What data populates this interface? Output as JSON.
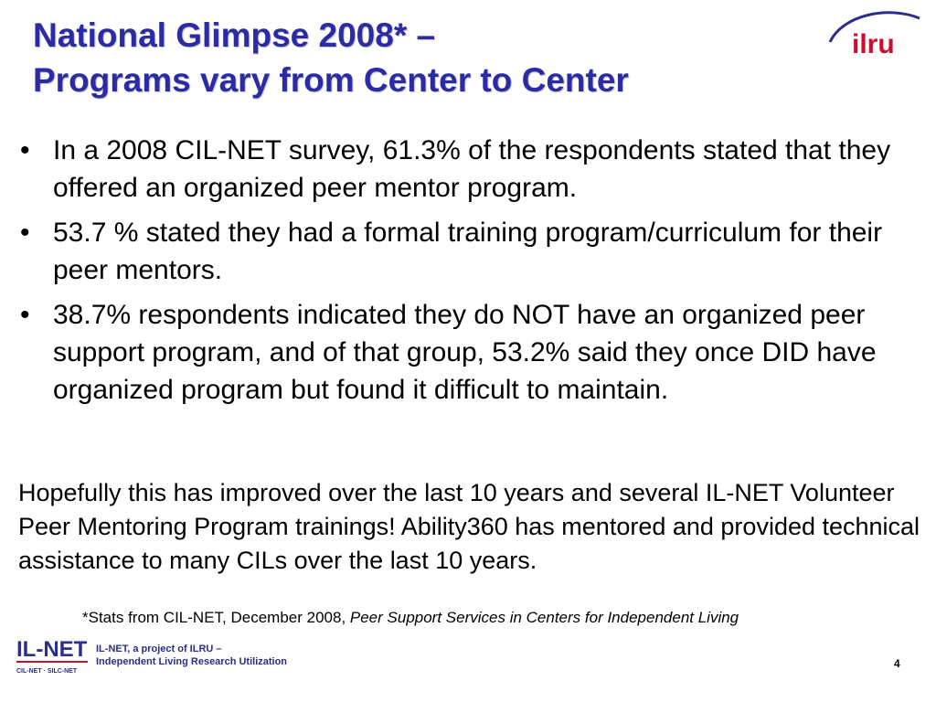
{
  "slide": {
    "title_line1": "National Glimpse 2008* –",
    "title_line2": "Programs vary from Center to Center",
    "bullets": [
      "In a 2008 CIL-NET survey, 61.3% of the respondents stated that they offered an organized peer mentor program.",
      "53.7 % stated they had a formal training program/curriculum for their peer mentors.",
      "38.7% respondents indicated they do NOT have an organized peer support program, and of that group, 53.2% said they once DID have organized program but found it difficult to maintain."
    ],
    "bullet_glyph": "•",
    "paragraph": "Hopefully this has improved over the last 10 years and several IL-NET Volunteer Peer Mentoring Program trainings! Ability360 has mentored and provided technical assistance to many CILs over the last 10 years.",
    "footnote_prefix": "*Stats from CIL-NET, December 2008, ",
    "footnote_italic": "Peer Support Services in Centers for Independent Living",
    "page_number": "4"
  },
  "logos": {
    "ilru_text": "ilru",
    "ilnet_text": "IL-NET",
    "ilnet_subtext": "CIL-NET · SILC-NET",
    "ilnet_tagline_line1": "IL-NET, a project of ILRU –",
    "ilnet_tagline_line2": "Independent Living Research Utilization"
  },
  "colors": {
    "title": "#2b2ba6",
    "ilru_red": "#c8102e",
    "ilnet_blue": "#2a2e8c"
  }
}
